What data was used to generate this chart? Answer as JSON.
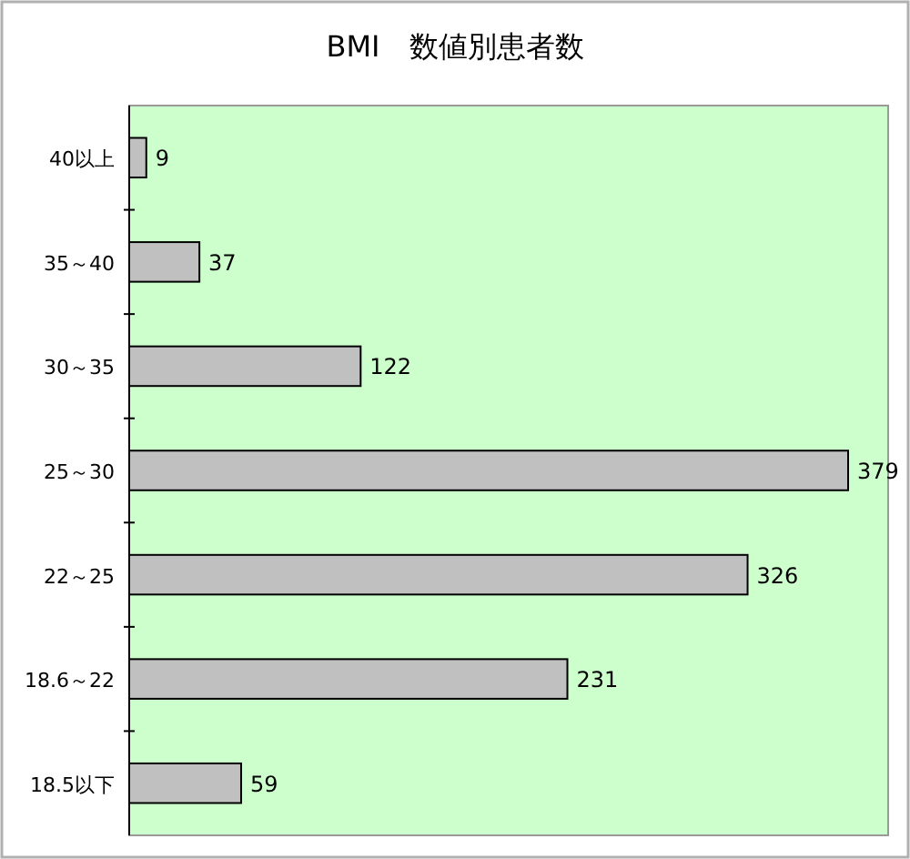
{
  "chart_data": {
    "type": "bar",
    "orientation": "horizontal",
    "title": "BMI　数値別患者数",
    "categories": [
      "40以上",
      "35～40",
      "30～35",
      "25～30",
      "22～25",
      "18.6～22",
      "18.5以下"
    ],
    "values": [
      9,
      37,
      122,
      379,
      326,
      231,
      59
    ],
    "color": "#c0c0c0",
    "data_labels": true
  }
}
